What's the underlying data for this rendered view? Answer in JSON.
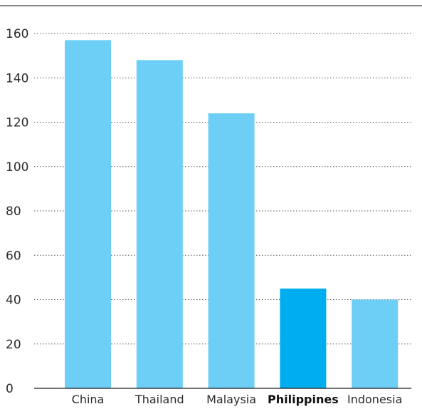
{
  "chart_data": {
    "type": "bar",
    "categories": [
      "China",
      "Thailand",
      "Malaysia",
      "Philippines",
      "Indonesia"
    ],
    "values": [
      157,
      148,
      124,
      45,
      40
    ],
    "highlight": "Philippines",
    "title": "",
    "xlabel": "",
    "ylabel": "",
    "ylim": [
      0,
      160
    ],
    "yticks": [
      0,
      20,
      40,
      60,
      80,
      100,
      120,
      140,
      160
    ],
    "grid": true,
    "legend": "none",
    "colors": {
      "bar": "#6dcff6",
      "bar_highlight": "#00aeef",
      "axis": "#1a1a1a",
      "grid": "#555555"
    }
  }
}
